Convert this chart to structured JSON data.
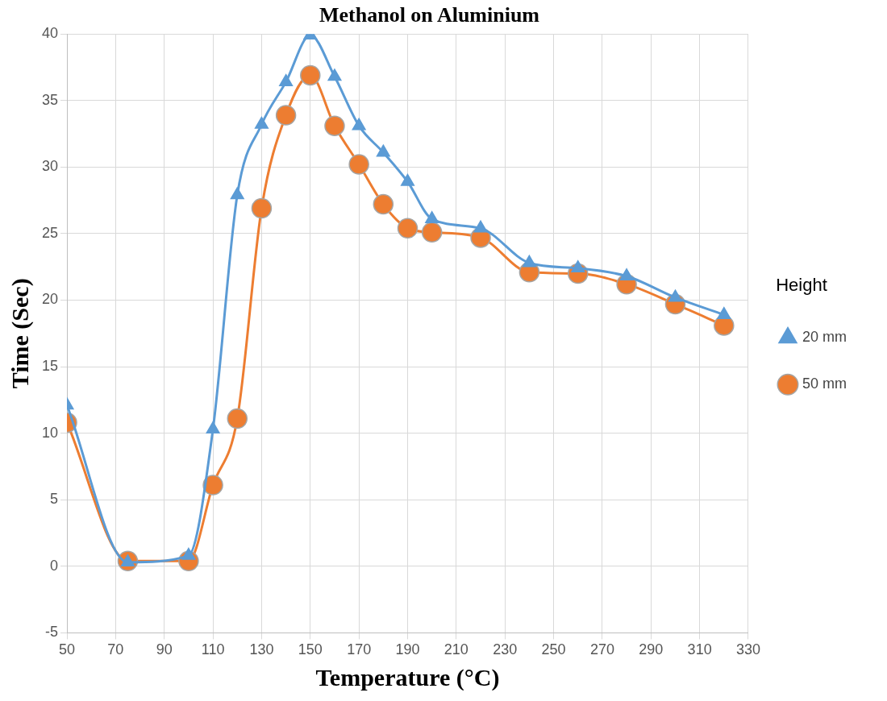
{
  "chart_data": {
    "type": "line",
    "title": "Methanol on Aluminium",
    "xlabel": "Temperature (°C)",
    "ylabel": "Time (Sec)",
    "legend_title": "Height",
    "legend": "right",
    "grid": true,
    "line_style": "solid",
    "x": [
      50,
      75,
      100,
      110,
      120,
      130,
      140,
      150,
      160,
      170,
      180,
      190,
      200,
      220,
      240,
      260,
      280,
      300,
      320
    ],
    "xlim": [
      50,
      330
    ],
    "xticks": [
      50,
      70,
      90,
      110,
      130,
      150,
      170,
      190,
      210,
      230,
      250,
      270,
      290,
      310,
      330
    ],
    "ylim": [
      -5,
      40
    ],
    "yticks": [
      -5,
      0,
      5,
      10,
      15,
      20,
      25,
      30,
      35,
      40
    ],
    "series": [
      {
        "name": "20 mm",
        "color": "#5b9bd5",
        "marker": "triangle",
        "values": [
          12.1,
          0.3,
          0.8,
          10.3,
          27.9,
          33.2,
          36.4,
          39.9,
          36.8,
          33.1,
          31.1,
          28.9,
          26.1,
          25.4,
          22.8,
          22.4,
          21.8,
          20.2,
          18.9
        ]
      },
      {
        "name": "50 mm",
        "color": "#ed7d31",
        "marker": "circle",
        "values": [
          10.8,
          0.4,
          0.4,
          6.1,
          11.1,
          26.9,
          33.9,
          36.9,
          33.1,
          30.2,
          27.2,
          25.4,
          25.1,
          24.7,
          22.1,
          22.0,
          21.2,
          19.7,
          18.1
        ]
      }
    ]
  }
}
